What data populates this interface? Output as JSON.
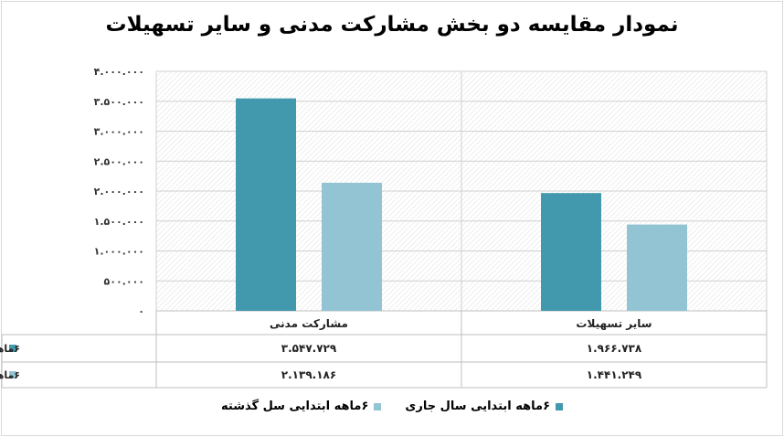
{
  "chart_data": {
    "type": "bar",
    "title": "نمودار مقایسه دو بخش مشارکت مدنی و سایر تسهیلات",
    "categories": [
      "مشارکت مدنی",
      "سایر تسهیلات"
    ],
    "series": [
      {
        "name": "۶ماهه ابتدایی سال جاری",
        "values": [
          3547729,
          1966738
        ],
        "labels": [
          "۳.۵۴۷.۷۲۹",
          "۱.۹۶۶.۷۳۸"
        ],
        "color": "#4299ae"
      },
      {
        "name": "۶ماهه ابتدایی سل گذشته",
        "values": [
          2139186,
          1441249
        ],
        "labels": [
          "۲.۱۳۹.۱۸۶",
          "۱.۴۴۱.۲۴۹"
        ],
        "color": "#93c4d4"
      }
    ],
    "ylim": [
      0,
      4000000
    ],
    "yticks": [
      0,
      500000,
      1000000,
      1500000,
      2000000,
      2500000,
      3000000,
      3500000,
      4000000
    ],
    "ytick_labels": [
      "۰",
      "۵۰۰.۰۰۰",
      "۱.۰۰۰.۰۰۰",
      "۱.۵۰۰.۰۰۰",
      "۲.۰۰۰.۰۰۰",
      "۲.۵۰۰.۰۰۰",
      "۳.۰۰۰.۰۰۰",
      "۳.۵۰۰.۰۰۰",
      "۴.۰۰۰.۰۰۰"
    ],
    "grid": true,
    "legend": "bottom",
    "data_table": true
  }
}
